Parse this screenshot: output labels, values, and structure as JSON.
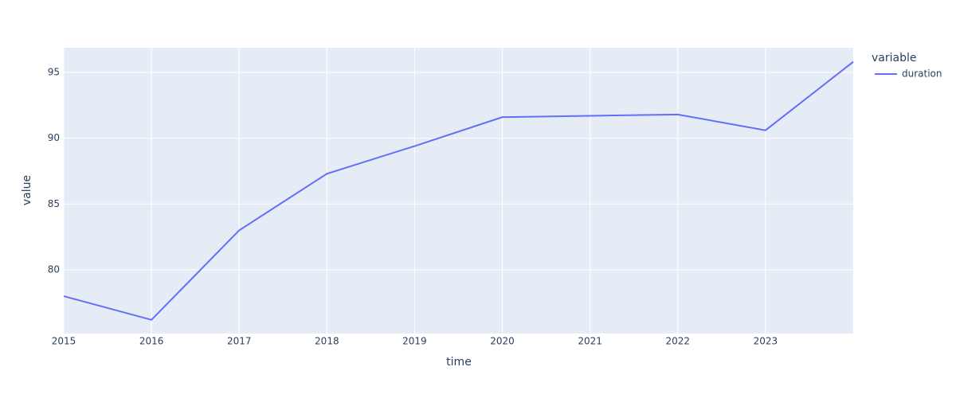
{
  "chart_data": {
    "type": "line",
    "x_label": "time",
    "y_label": "value",
    "x": [
      2015,
      2016,
      2017,
      2018,
      2019,
      2020,
      2021,
      2022,
      2023,
      2024
    ],
    "series": [
      {
        "name": "duration",
        "color": "#636efa",
        "values": [
          78.0,
          76.2,
          83.0,
          87.3,
          89.4,
          91.6,
          91.7,
          91.8,
          90.6,
          95.8
        ]
      }
    ],
    "xlim": [
      2015,
      2024
    ],
    "xticks": [
      2015,
      2016,
      2017,
      2018,
      2019,
      2020,
      2021,
      2022,
      2023
    ],
    "ylim": [
      75.16,
      96.87
    ],
    "yticks": [
      80,
      85,
      90,
      95
    ],
    "grid": true,
    "legend_title": "variable",
    "legend_position": "right",
    "plot_background": "#e5ecf6"
  }
}
